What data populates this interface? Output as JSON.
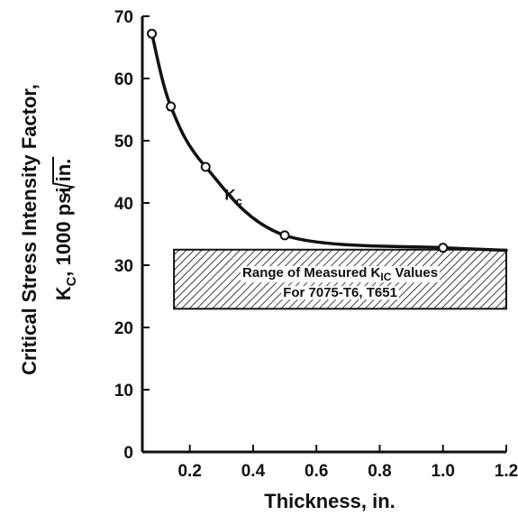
{
  "chart_data": {
    "type": "line",
    "title": "",
    "xlabel": "Thickness, in.",
    "ylabel_line1": "Critical Stress Intensity Factor,",
    "ylabel_line2": {
      "k": "K",
      "k_sub": "C",
      "rest": ", 1000 psi ",
      "root_arg": "in."
    },
    "xlim": [
      0.05,
      1.2
    ],
    "ylim": [
      0,
      70
    ],
    "xticks": [
      "0.2",
      "0.4",
      "0.6",
      "0.8",
      "1.0",
      "1.2"
    ],
    "yticks": [
      "0",
      "10",
      "20",
      "30",
      "40",
      "50",
      "60",
      "70"
    ],
    "grid": false,
    "series": [
      {
        "name": "Kc",
        "label_main": "K",
        "label_sub": "c",
        "x": [
          0.08,
          0.14,
          0.25,
          0.5,
          1.0
        ],
        "y": [
          67.2,
          55.5,
          45.8,
          34.8,
          32.8
        ],
        "color": "#111111",
        "marker": "open-circle"
      }
    ],
    "band": {
      "y_range": [
        23,
        32.5
      ],
      "x_range": [
        0.15,
        1.2
      ],
      "pattern": "diagonal-hatch",
      "label_line1_pre": "Range of Measured K",
      "label_line1_sub": "IC",
      "label_line1_post": " Values",
      "label_line2": "For 7075-T6, T651"
    }
  }
}
